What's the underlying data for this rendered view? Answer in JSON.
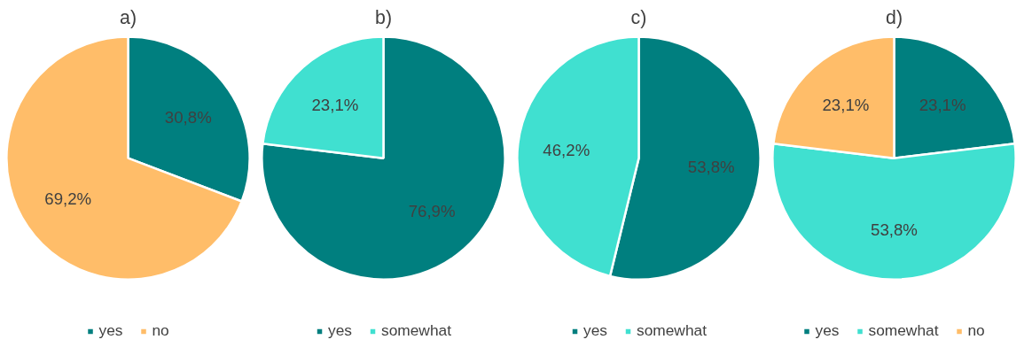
{
  "chart_data": [
    {
      "type": "pie",
      "title": "a)",
      "categories": [
        "yes",
        "no"
      ],
      "values": [
        30.8,
        69.2
      ],
      "colors": [
        "#007f7f",
        "#ffbd69"
      ],
      "value_labels": [
        "30,8%",
        "69,2%"
      ],
      "legend": "bottom"
    },
    {
      "type": "pie",
      "title": "b)",
      "categories": [
        "yes",
        "somewhat"
      ],
      "values": [
        76.9,
        23.1
      ],
      "colors": [
        "#007f7f",
        "#40e0d0"
      ],
      "value_labels": [
        "76,9%",
        "23,1%"
      ],
      "legend": "bottom"
    },
    {
      "type": "pie",
      "title": "c)",
      "categories": [
        "yes",
        "somewhat"
      ],
      "values": [
        53.8,
        46.2
      ],
      "colors": [
        "#007f7f",
        "#40e0d0"
      ],
      "value_labels": [
        "53,8%",
        "46,2%"
      ],
      "legend": "bottom"
    },
    {
      "type": "pie",
      "title": "d)",
      "categories": [
        "yes",
        "somewhat",
        "no"
      ],
      "values": [
        23.1,
        53.8,
        23.1
      ],
      "colors": [
        "#007f7f",
        "#40e0d0",
        "#ffbd69"
      ],
      "value_labels": [
        "23,1%",
        "53,8%",
        "23,1%"
      ],
      "legend": "bottom"
    }
  ]
}
